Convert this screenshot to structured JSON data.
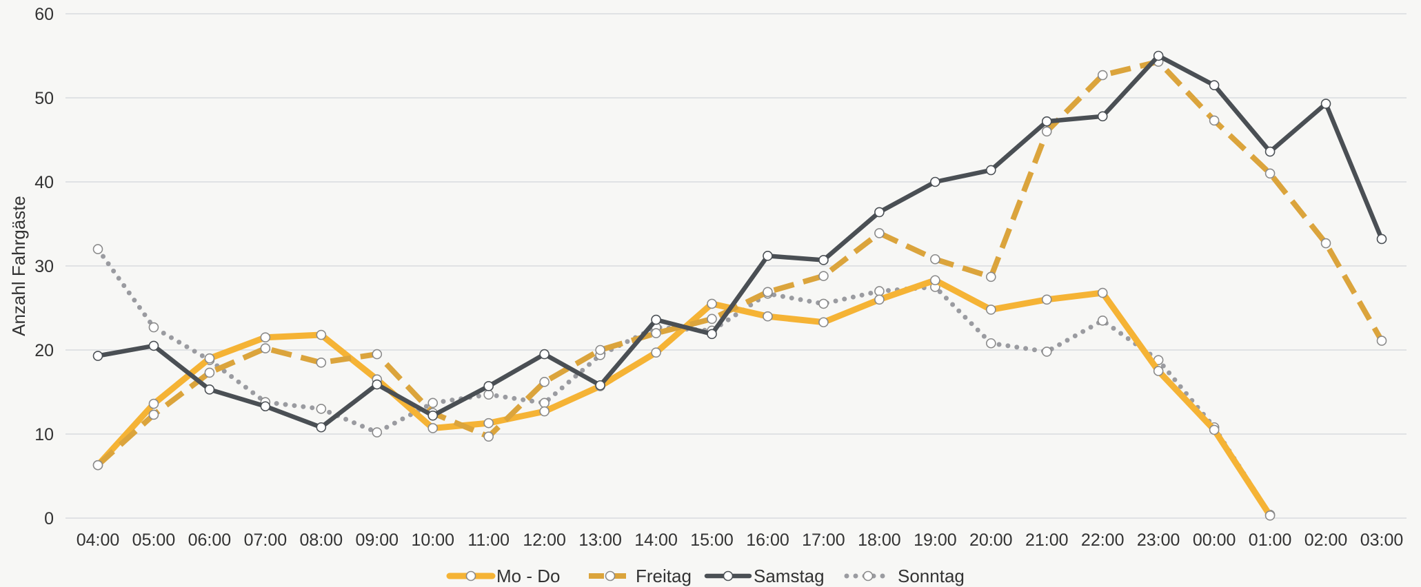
{
  "chart_data": {
    "type": "line",
    "title": "",
    "xlabel": "",
    "ylabel": "Anzahl Fahrgäste",
    "ylim": [
      0,
      60
    ],
    "yticks": [
      0,
      10,
      20,
      30,
      40,
      50,
      60
    ],
    "grid": "horizontal",
    "legend_position": "bottom",
    "categories": [
      "04:00",
      "05:00",
      "06:00",
      "07:00",
      "08:00",
      "09:00",
      "10:00",
      "11:00",
      "12:00",
      "13:00",
      "14:00",
      "15:00",
      "16:00",
      "17:00",
      "18:00",
      "19:00",
      "20:00",
      "21:00",
      "22:00",
      "23:00",
      "00:00",
      "01:00",
      "02:00",
      "03:00"
    ],
    "series": [
      {
        "name": "Mo - Do",
        "color": "#f5b335",
        "style": "solid",
        "values": [
          6.3,
          13.6,
          19.0,
          21.5,
          21.8,
          16.5,
          10.7,
          11.3,
          12.7,
          15.7,
          19.7,
          25.5,
          24.0,
          23.3,
          26.0,
          28.3,
          24.8,
          26.0,
          26.8,
          17.5,
          10.5,
          0.3,
          null,
          null
        ]
      },
      {
        "name": "Freitag",
        "color": "#dba43c",
        "style": "dashed",
        "values": [
          6.3,
          12.3,
          17.3,
          20.2,
          18.5,
          19.5,
          12.5,
          9.7,
          16.2,
          20.0,
          22.0,
          23.7,
          26.9,
          28.8,
          33.9,
          30.8,
          28.7,
          46.0,
          52.7,
          54.3,
          47.3,
          41.0,
          32.7,
          21.1
        ]
      },
      {
        "name": "Samstag",
        "color": "#4a4f54",
        "style": "solid",
        "values": [
          19.3,
          20.5,
          15.3,
          13.3,
          10.8,
          15.9,
          12.2,
          15.7,
          19.5,
          15.8,
          23.6,
          21.9,
          31.2,
          30.7,
          36.4,
          40.0,
          41.4,
          47.2,
          47.8,
          55.0,
          51.5,
          43.6,
          49.3,
          33.2
        ]
      },
      {
        "name": "Sonntag",
        "color": "#9a9ba0",
        "style": "dotted",
        "values": [
          32.0,
          22.7,
          18.8,
          13.8,
          13.0,
          10.2,
          13.7,
          14.7,
          13.7,
          19.4,
          22.7,
          22.3,
          26.7,
          25.5,
          27.0,
          27.5,
          20.8,
          19.8,
          23.5,
          18.8,
          10.8,
          0.4,
          null,
          null
        ]
      }
    ]
  }
}
